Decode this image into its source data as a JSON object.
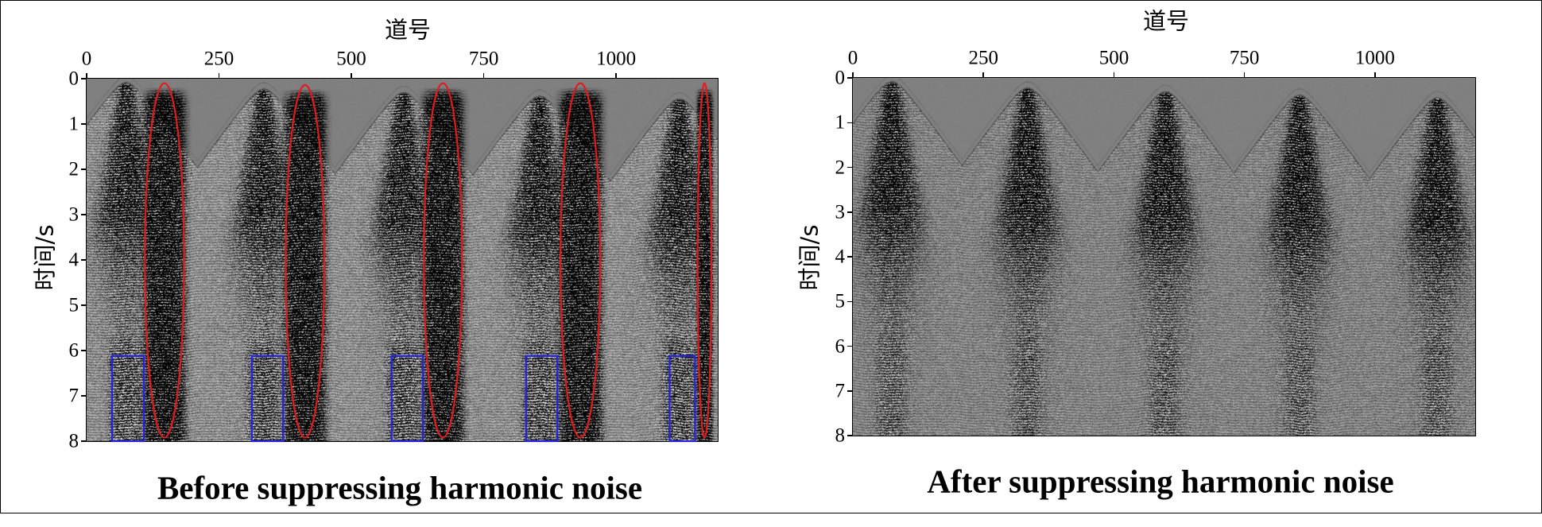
{
  "chart_data": [
    {
      "type": "heatmap",
      "title": "Before suppressing harmonic noise",
      "xlabel": "道号",
      "ylabel": "时间/s",
      "x_ticks": [
        0,
        250,
        500,
        750,
        1000
      ],
      "y_ticks": [
        0,
        1,
        2,
        3,
        4,
        5,
        6,
        7,
        8
      ],
      "xlim": [
        0,
        1192
      ],
      "ylim": [
        0,
        8
      ],
      "x_axis_side": "top",
      "y_inverted": true,
      "colormap": "grayscale",
      "grid": false,
      "annotations": [
        {
          "shape": "ellipse",
          "color": "#e31a1c",
          "trace_range": [
            110,
            184
          ],
          "time_range_s": [
            0.1,
            7.92
          ]
        },
        {
          "shape": "ellipse",
          "color": "#e31a1c",
          "trace_range": [
            376,
            449
          ],
          "time_range_s": [
            0.14,
            7.92
          ]
        },
        {
          "shape": "ellipse",
          "color": "#e31a1c",
          "trace_range": [
            637,
            709
          ],
          "time_range_s": [
            0.1,
            7.92
          ]
        },
        {
          "shape": "ellipse",
          "color": "#e31a1c",
          "trace_range": [
            895,
            970
          ],
          "time_range_s": [
            0.1,
            7.92
          ]
        },
        {
          "shape": "ellipse",
          "color": "#e31a1c",
          "trace_range": [
            1154,
            1180
          ],
          "time_range_s": [
            0.1,
            7.92
          ]
        },
        {
          "shape": "rectangle",
          "color": "#2222e0",
          "trace_range": [
            48,
            108
          ],
          "time_range_s": [
            6.12,
            8
          ]
        },
        {
          "shape": "rectangle",
          "color": "#2222e0",
          "trace_range": [
            312,
            371
          ],
          "time_range_s": [
            6.12,
            8
          ]
        },
        {
          "shape": "rectangle",
          "color": "#2222e0",
          "trace_range": [
            576,
            635
          ],
          "time_range_s": [
            6.12,
            8
          ]
        },
        {
          "shape": "rectangle",
          "color": "#2222e0",
          "trace_range": [
            830,
            889
          ],
          "time_range_s": [
            6.12,
            8
          ]
        },
        {
          "shape": "rectangle",
          "color": "#2222e0",
          "trace_range": [
            1101,
            1149
          ],
          "time_range_s": [
            6.12,
            8
          ]
        }
      ]
    },
    {
      "type": "heatmap",
      "title": "After suppressing harmonic noise",
      "xlabel": "道号",
      "ylabel": "时间/s",
      "x_ticks": [
        0,
        250,
        500,
        750,
        1000
      ],
      "y_ticks": [
        0,
        1,
        2,
        3,
        4,
        5,
        6,
        7,
        8
      ],
      "xlim": [
        0,
        1192
      ],
      "ylim": [
        0,
        8
      ],
      "x_axis_side": "top",
      "y_inverted": true,
      "colormap": "grayscale",
      "grid": false
    }
  ]
}
